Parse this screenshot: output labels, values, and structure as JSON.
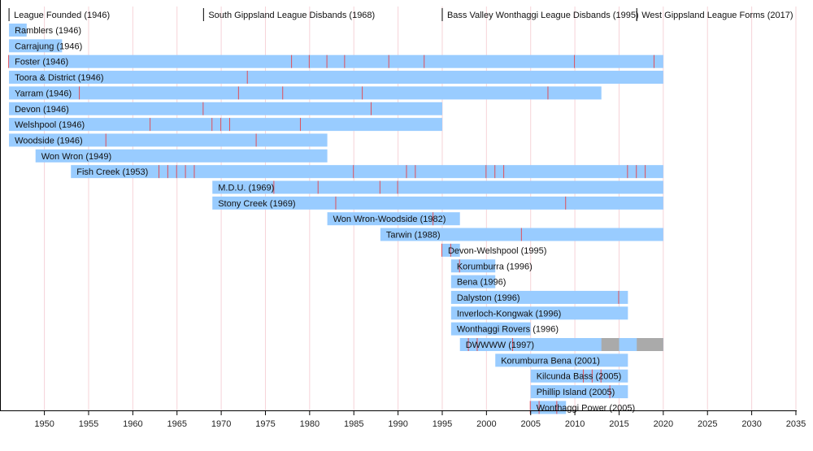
{
  "chart_data": {
    "type": "timeline",
    "x_range": [
      1946,
      2035
    ],
    "x_ticks": [
      1950,
      1955,
      1960,
      1965,
      1970,
      1975,
      1980,
      1985,
      1990,
      1995,
      2000,
      2005,
      2010,
      2015,
      2020,
      2025,
      2030,
      2035
    ],
    "grid": true,
    "colors": {
      "bar": "#99ccff",
      "premiership": "#e0505a",
      "inactive": "#aaaaaa",
      "grid": "#f6d3d8",
      "axis": "#000000"
    },
    "events": [
      {
        "year": 1946,
        "label": "League Founded (1946)"
      },
      {
        "year": 1968,
        "label": "South Gippsland League Disbands (1968)"
      },
      {
        "year": 1995,
        "label": "Bass Valley Wonthaggi League Disbands (1995)"
      },
      {
        "year": 2017,
        "label": "West Gippsland League Forms (2017)"
      }
    ],
    "clubs": [
      {
        "label": "Ramblers (1946)",
        "start": 1946,
        "end": 1948,
        "premierships": []
      },
      {
        "label": "Carrajung (1946)",
        "start": 1946,
        "end": 1952,
        "premierships": []
      },
      {
        "label": "Foster (1946)",
        "start": 1946,
        "end": 2020,
        "premierships": [
          1946,
          1978,
          1980,
          1982,
          1984,
          1989,
          1993,
          2010,
          2019
        ]
      },
      {
        "label": "Toora & District (1946)",
        "start": 1946,
        "end": 2020,
        "premierships": [
          1973
        ]
      },
      {
        "label": "Yarram (1946)",
        "start": 1946,
        "end": 2013,
        "premierships": [
          1954,
          1972,
          1977,
          1986,
          2007
        ]
      },
      {
        "label": "Devon (1946)",
        "start": 1946,
        "end": 1995,
        "premierships": [
          1968,
          1987
        ]
      },
      {
        "label": "Welshpool (1946)",
        "start": 1946,
        "end": 1995,
        "premierships": [
          1962,
          1969,
          1970,
          1971,
          1979
        ]
      },
      {
        "label": "Woodside (1946)",
        "start": 1946,
        "end": 1982,
        "premierships": [
          1957,
          1974
        ]
      },
      {
        "label": "Won Wron (1949)",
        "start": 1949,
        "end": 1982,
        "premierships": []
      },
      {
        "label": "Fish Creek (1953)",
        "start": 1953,
        "end": 2020,
        "premierships": [
          1963,
          1964,
          1965,
          1966,
          1967,
          1985,
          1991,
          1992,
          2000,
          2001,
          2002,
          2016,
          2017,
          2018
        ]
      },
      {
        "label": "M.D.U. (1969)",
        "start": 1969,
        "end": 2020,
        "premierships": [
          1976,
          1981,
          1988,
          1990
        ]
      },
      {
        "label": "Stony Creek (1969)",
        "start": 1969,
        "end": 2020,
        "premierships": [
          1983,
          2009
        ]
      },
      {
        "label": "Won Wron-Woodside (1982)",
        "start": 1982,
        "end": 1997,
        "premierships": [
          1994
        ]
      },
      {
        "label": "Tarwin (1988)",
        "start": 1988,
        "end": 2020,
        "premierships": [
          2004
        ]
      },
      {
        "label": "Devon-Welshpool (1995)",
        "start": 1995,
        "end": 1997,
        "premierships": [
          1995,
          1996
        ]
      },
      {
        "label": "Korumburra (1996)",
        "start": 1996,
        "end": 2001,
        "premierships": [
          1997
        ]
      },
      {
        "label": "Bena (1996)",
        "start": 1996,
        "end": 2001,
        "premierships": []
      },
      {
        "label": "Dalyston (1996)",
        "start": 1996,
        "end": 2016,
        "premierships": [
          2015
        ]
      },
      {
        "label": "Inverloch-Kongwak (1996)",
        "start": 1996,
        "end": 2016,
        "premierships": []
      },
      {
        "label": "Wonthaggi Rovers (1996)",
        "start": 1996,
        "end": 2005,
        "premierships": []
      },
      {
        "label": "DWWWW (1997)",
        "start": 1997,
        "end": 2020,
        "premierships": [
          1998,
          1999,
          2003
        ],
        "inactive": [
          [
            2013,
            2015
          ],
          [
            2017,
            2020
          ]
        ]
      },
      {
        "label": "Korumburra Bena (2001)",
        "start": 2001,
        "end": 2016,
        "premierships": []
      },
      {
        "label": "Kilcunda Bass (2005)",
        "start": 2005,
        "end": 2016,
        "premierships": [
          2011,
          2012,
          2013
        ]
      },
      {
        "label": "Phillip Island (2005)",
        "start": 2005,
        "end": 2016,
        "premierships": [
          2014
        ]
      },
      {
        "label": "Wonthaggi Power (2005)",
        "start": 2005,
        "end": 2009,
        "premierships": [
          2005,
          2006,
          2008
        ]
      }
    ]
  }
}
